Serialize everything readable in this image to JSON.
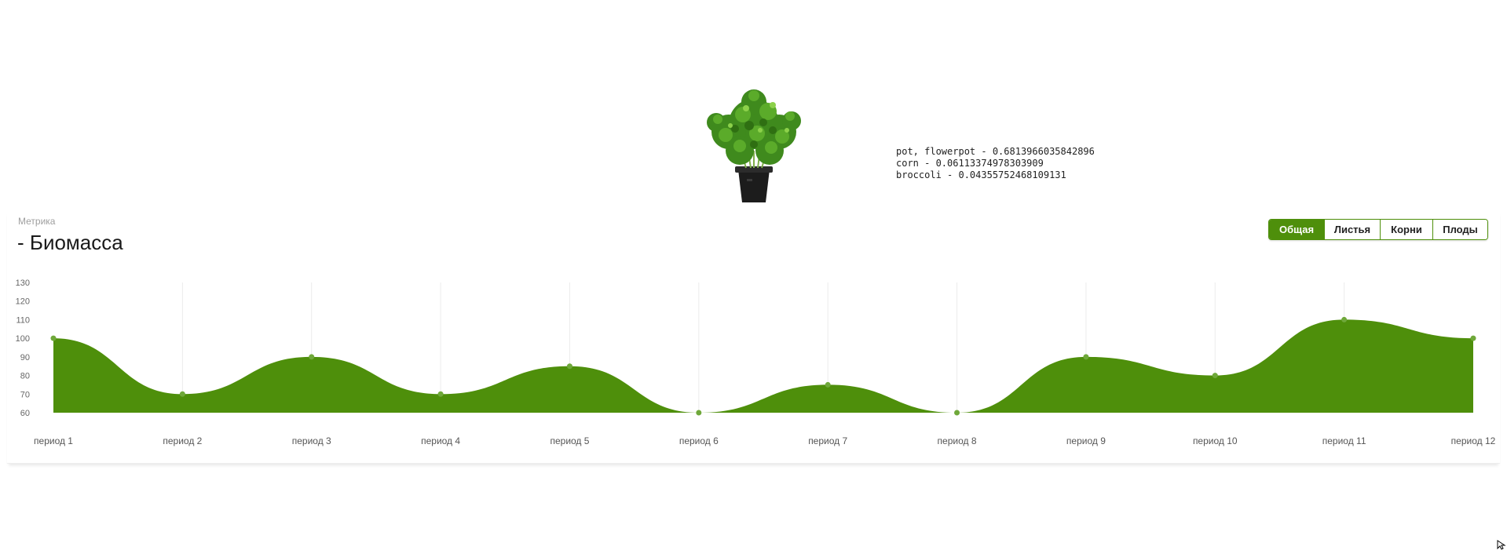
{
  "predictions": [
    "pot, flowerpot - 0.6813966035842896",
    "corn - 0.06113374978303909",
    "broccoli - 0.04355752468109131"
  ],
  "metric": {
    "label": "Метрика",
    "title": "- Биомасса"
  },
  "tabs": [
    {
      "label": "Общая",
      "active": true
    },
    {
      "label": "Листья",
      "active": false
    },
    {
      "label": "Корни",
      "active": false
    },
    {
      "label": "Плоды",
      "active": false
    }
  ],
  "colors": {
    "accent": "#4e8f0b",
    "area": "#4e8f0b",
    "point": "#6fa83a",
    "grid": "#ececec"
  },
  "chart_data": {
    "type": "area",
    "categories": [
      "период 1",
      "период 2",
      "период 3",
      "период 4",
      "период 5",
      "период 6",
      "период 7",
      "период 8",
      "период 9",
      "период 10",
      "период 11",
      "период 12"
    ],
    "series": [
      {
        "name": "Биомасса",
        "values": [
          100,
          70,
          90,
          70,
          85,
          60,
          75,
          60,
          90,
          80,
          110,
          100
        ]
      }
    ],
    "yticks": [
      60,
      70,
      80,
      90,
      100,
      110,
      120,
      130
    ],
    "ylim": [
      60,
      130
    ],
    "grid": true,
    "title": "",
    "xlabel": "",
    "ylabel": ""
  }
}
